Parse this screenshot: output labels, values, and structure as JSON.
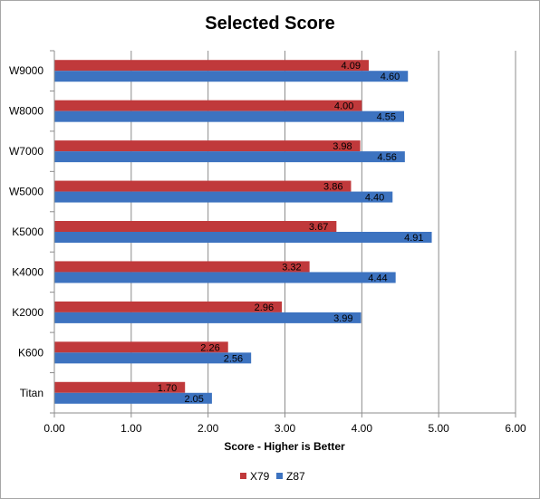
{
  "chart_data": {
    "type": "bar",
    "orientation": "horizontal",
    "title": "Selected Score",
    "xlabel": "Score - Higher is Better",
    "ylabel": "",
    "xlim": [
      0,
      6
    ],
    "x_ticks": [
      "0.00",
      "1.00",
      "2.00",
      "3.00",
      "4.00",
      "5.00",
      "6.00"
    ],
    "grid": true,
    "legend_position": "bottom",
    "categories": [
      "W9000",
      "W8000",
      "W7000",
      "W5000",
      "K5000",
      "K4000",
      "K2000",
      "K600",
      "Titan"
    ],
    "series": [
      {
        "name": "X79",
        "color": "#c0393b",
        "values": [
          4.09,
          4.0,
          3.98,
          3.86,
          3.67,
          3.32,
          2.96,
          2.26,
          1.7
        ],
        "labels": [
          "4.09",
          "4.00",
          "3.98",
          "3.86",
          "3.67",
          "3.32",
          "2.96",
          "2.26",
          "1.70"
        ]
      },
      {
        "name": "Z87",
        "color": "#3d73c0",
        "values": [
          4.6,
          4.55,
          4.56,
          4.4,
          4.91,
          4.44,
          3.99,
          2.56,
          2.05
        ],
        "labels": [
          "4.60",
          "4.55",
          "4.56",
          "4.40",
          "4.91",
          "4.44",
          "3.99",
          "2.56",
          "2.05"
        ]
      }
    ]
  }
}
